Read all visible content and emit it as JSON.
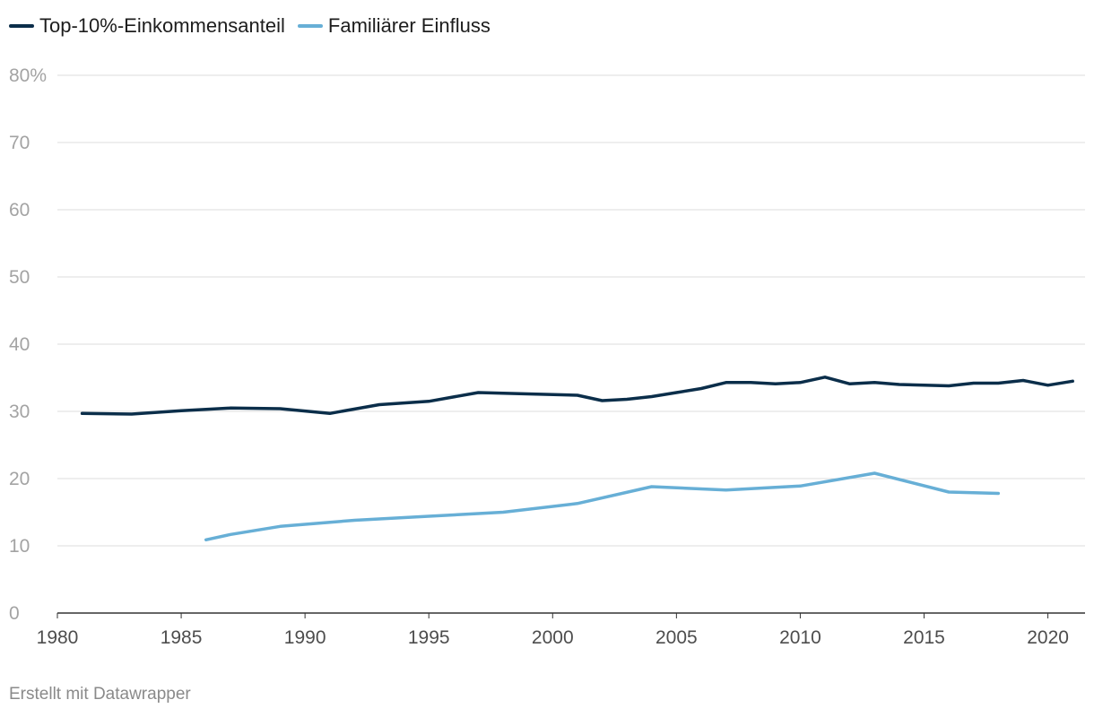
{
  "legend": {
    "items": [
      {
        "label": "Top-10%-Einkommensanteil",
        "color": "#0b2e4a"
      },
      {
        "label": "Familiärer Einfluss",
        "color": "#67afd6"
      }
    ]
  },
  "footer": {
    "credit": "Erstellt mit Datawrapper"
  },
  "chart_data": {
    "type": "line",
    "title": "",
    "xlabel": "",
    "ylabel": "",
    "xlim": [
      1980,
      2021.5
    ],
    "ylim": [
      0,
      80
    ],
    "x_ticks": [
      1980,
      1985,
      1990,
      1995,
      2000,
      2005,
      2010,
      2015,
      2020
    ],
    "y_ticks": [
      0,
      10,
      20,
      30,
      40,
      50,
      60,
      70,
      80
    ],
    "y_tick_labels": [
      "0",
      "10",
      "20",
      "30",
      "40",
      "50",
      "60",
      "70",
      "80%"
    ],
    "grid": true,
    "series": [
      {
        "name": "Top-10%-Einkommensanteil",
        "color": "#0b2e4a",
        "points": [
          [
            1981,
            29.7
          ],
          [
            1983,
            29.6
          ],
          [
            1985,
            30.1
          ],
          [
            1987,
            30.5
          ],
          [
            1989,
            30.4
          ],
          [
            1991,
            29.7
          ],
          [
            1993,
            31.0
          ],
          [
            1995,
            31.5
          ],
          [
            1997,
            32.8
          ],
          [
            1999,
            32.6
          ],
          [
            2001,
            32.4
          ],
          [
            2002,
            31.6
          ],
          [
            2003,
            31.8
          ],
          [
            2004,
            32.2
          ],
          [
            2005,
            32.8
          ],
          [
            2006,
            33.4
          ],
          [
            2007,
            34.3
          ],
          [
            2008,
            34.3
          ],
          [
            2009,
            34.1
          ],
          [
            2010,
            34.3
          ],
          [
            2011,
            35.1
          ],
          [
            2012,
            34.1
          ],
          [
            2013,
            34.3
          ],
          [
            2014,
            34.0
          ],
          [
            2015,
            33.9
          ],
          [
            2016,
            33.8
          ],
          [
            2017,
            34.2
          ],
          [
            2018,
            34.2
          ],
          [
            2019,
            34.6
          ],
          [
            2020,
            33.9
          ],
          [
            2021,
            34.5
          ]
        ]
      },
      {
        "name": "Familiärer Einfluss",
        "color": "#67afd6",
        "points": [
          [
            1986,
            10.9
          ],
          [
            1987,
            11.7
          ],
          [
            1989,
            12.9
          ],
          [
            1992,
            13.8
          ],
          [
            1995,
            14.4
          ],
          [
            1998,
            15.0
          ],
          [
            2001,
            16.3
          ],
          [
            2004,
            18.8
          ],
          [
            2007,
            18.3
          ],
          [
            2010,
            18.9
          ],
          [
            2013,
            20.8
          ],
          [
            2016,
            18.0
          ],
          [
            2018,
            17.8
          ]
        ]
      }
    ]
  }
}
